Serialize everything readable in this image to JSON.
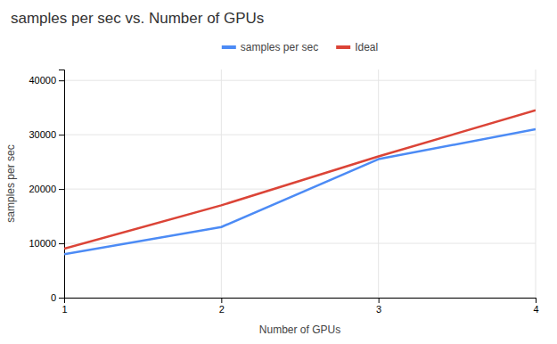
{
  "chart_data": {
    "type": "line",
    "title": "samples per sec vs. Number of GPUs",
    "xlabel": "Number of GPUs",
    "ylabel": "samples per sec",
    "x": [
      1,
      2,
      3,
      4
    ],
    "series": [
      {
        "name": "samples per sec",
        "color": "#4c8bf5",
        "values": [
          8000,
          13000,
          25500,
          31000
        ]
      },
      {
        "name": "Ideal",
        "color": "#db4437",
        "values": [
          9000,
          17000,
          26000,
          34500
        ]
      }
    ],
    "xlim": [
      1,
      4
    ],
    "ylim": [
      0,
      42000
    ],
    "xticks": [
      1,
      2,
      3,
      4
    ],
    "yticks": [
      0,
      10000,
      20000,
      30000,
      40000
    ],
    "grid": true,
    "legend": "top"
  }
}
